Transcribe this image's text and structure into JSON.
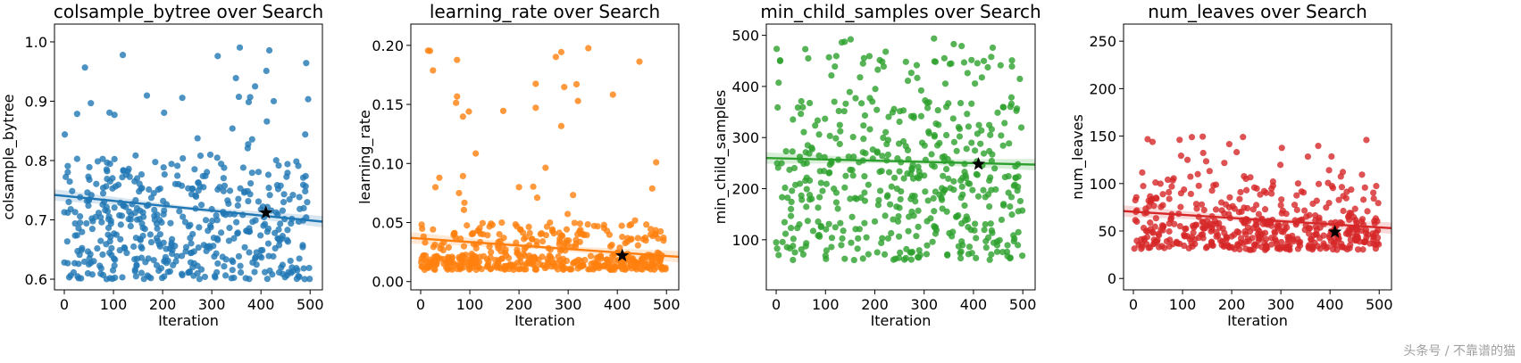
{
  "watermark": "头条号 / 不靠谱的猫",
  "chart_data": [
    {
      "type": "scatter",
      "title": "colsample_bytree over Search",
      "xlabel": "Iteration",
      "ylabel": "colsample_bytree",
      "color": "#1f77b4",
      "xlim": [
        -20,
        525
      ],
      "ylim": [
        0.582,
        1.03
      ],
      "xticks": [
        0,
        100,
        200,
        300,
        400,
        500
      ],
      "yticks": [
        0.6,
        0.7,
        0.8,
        0.9,
        1.0
      ],
      "ytick_labels": [
        "0.6",
        "0.7",
        "0.8",
        "0.9",
        "1.0"
      ],
      "regression": {
        "x": [
          -20,
          525
        ],
        "y": [
          0.742,
          0.697
        ]
      },
      "best": {
        "x": 410,
        "y": 0.712
      },
      "points": {
        "n": 500,
        "low": 0.6,
        "mid": 0.72,
        "high": 0.81,
        "outlier_max": 1.0,
        "seed": 7,
        "outliers": 36
      }
    },
    {
      "type": "scatter",
      "title": "learning_rate over Search",
      "xlabel": "Iteration",
      "ylabel": "learning_rate",
      "color": "#ff7f0e",
      "xlim": [
        -20,
        525
      ],
      "ylim": [
        -0.007,
        0.218
      ],
      "xticks": [
        0,
        100,
        200,
        300,
        400,
        500
      ],
      "yticks": [
        0.0,
        0.05,
        0.1,
        0.15,
        0.2
      ],
      "ytick_labels": [
        "0.00",
        "0.05",
        "0.10",
        "0.15",
        "0.20"
      ],
      "regression": {
        "x": [
          -20,
          525
        ],
        "y": [
          0.037,
          0.021
        ]
      },
      "best": {
        "x": 410,
        "y": 0.022
      },
      "points": {
        "n": 500,
        "low": 0.01,
        "mid": 0.018,
        "high": 0.05,
        "outlier_max": 0.198,
        "seed": 13,
        "outliers": 40
      }
    },
    {
      "type": "scatter",
      "title": "min_child_samples over Search",
      "xlabel": "Iteration",
      "ylabel": "min_child_samples",
      "color": "#2ca02c",
      "xlim": [
        -20,
        525
      ],
      "ylim": [
        2,
        522
      ],
      "xticks": [
        0,
        100,
        200,
        300,
        400,
        500
      ],
      "yticks": [
        100,
        200,
        300,
        400,
        500
      ],
      "ytick_labels": [
        "100",
        "200",
        "300",
        "400",
        "500"
      ],
      "regression": {
        "x": [
          -20,
          525
        ],
        "y": [
          260,
          247
        ]
      },
      "best": {
        "x": 410,
        "y": 248
      },
      "points": {
        "n": 500,
        "low": 60,
        "mid": 255,
        "high": 460,
        "outlier_max": 500,
        "seed": 21,
        "outliers": 10
      }
    },
    {
      "type": "scatter",
      "title": "num_leaves over Search",
      "xlabel": "Iteration",
      "ylabel": "num_leaves",
      "color": "#d62728",
      "xlim": [
        -20,
        525
      ],
      "ylim": [
        -12,
        268
      ],
      "xticks": [
        0,
        100,
        200,
        300,
        400,
        500
      ],
      "yticks": [
        0,
        50,
        100,
        150,
        200,
        250
      ],
      "ytick_labels": [
        "0",
        "50",
        "100",
        "150",
        "200",
        "250"
      ],
      "regression": {
        "x": [
          -20,
          525
        ],
        "y": [
          71,
          53
        ]
      },
      "best": {
        "x": 410,
        "y": 49
      },
      "points": {
        "n": 500,
        "low": 30,
        "mid": 50,
        "high": 100,
        "outlier_max": 150,
        "seed": 5,
        "outliers": 40
      }
    }
  ]
}
